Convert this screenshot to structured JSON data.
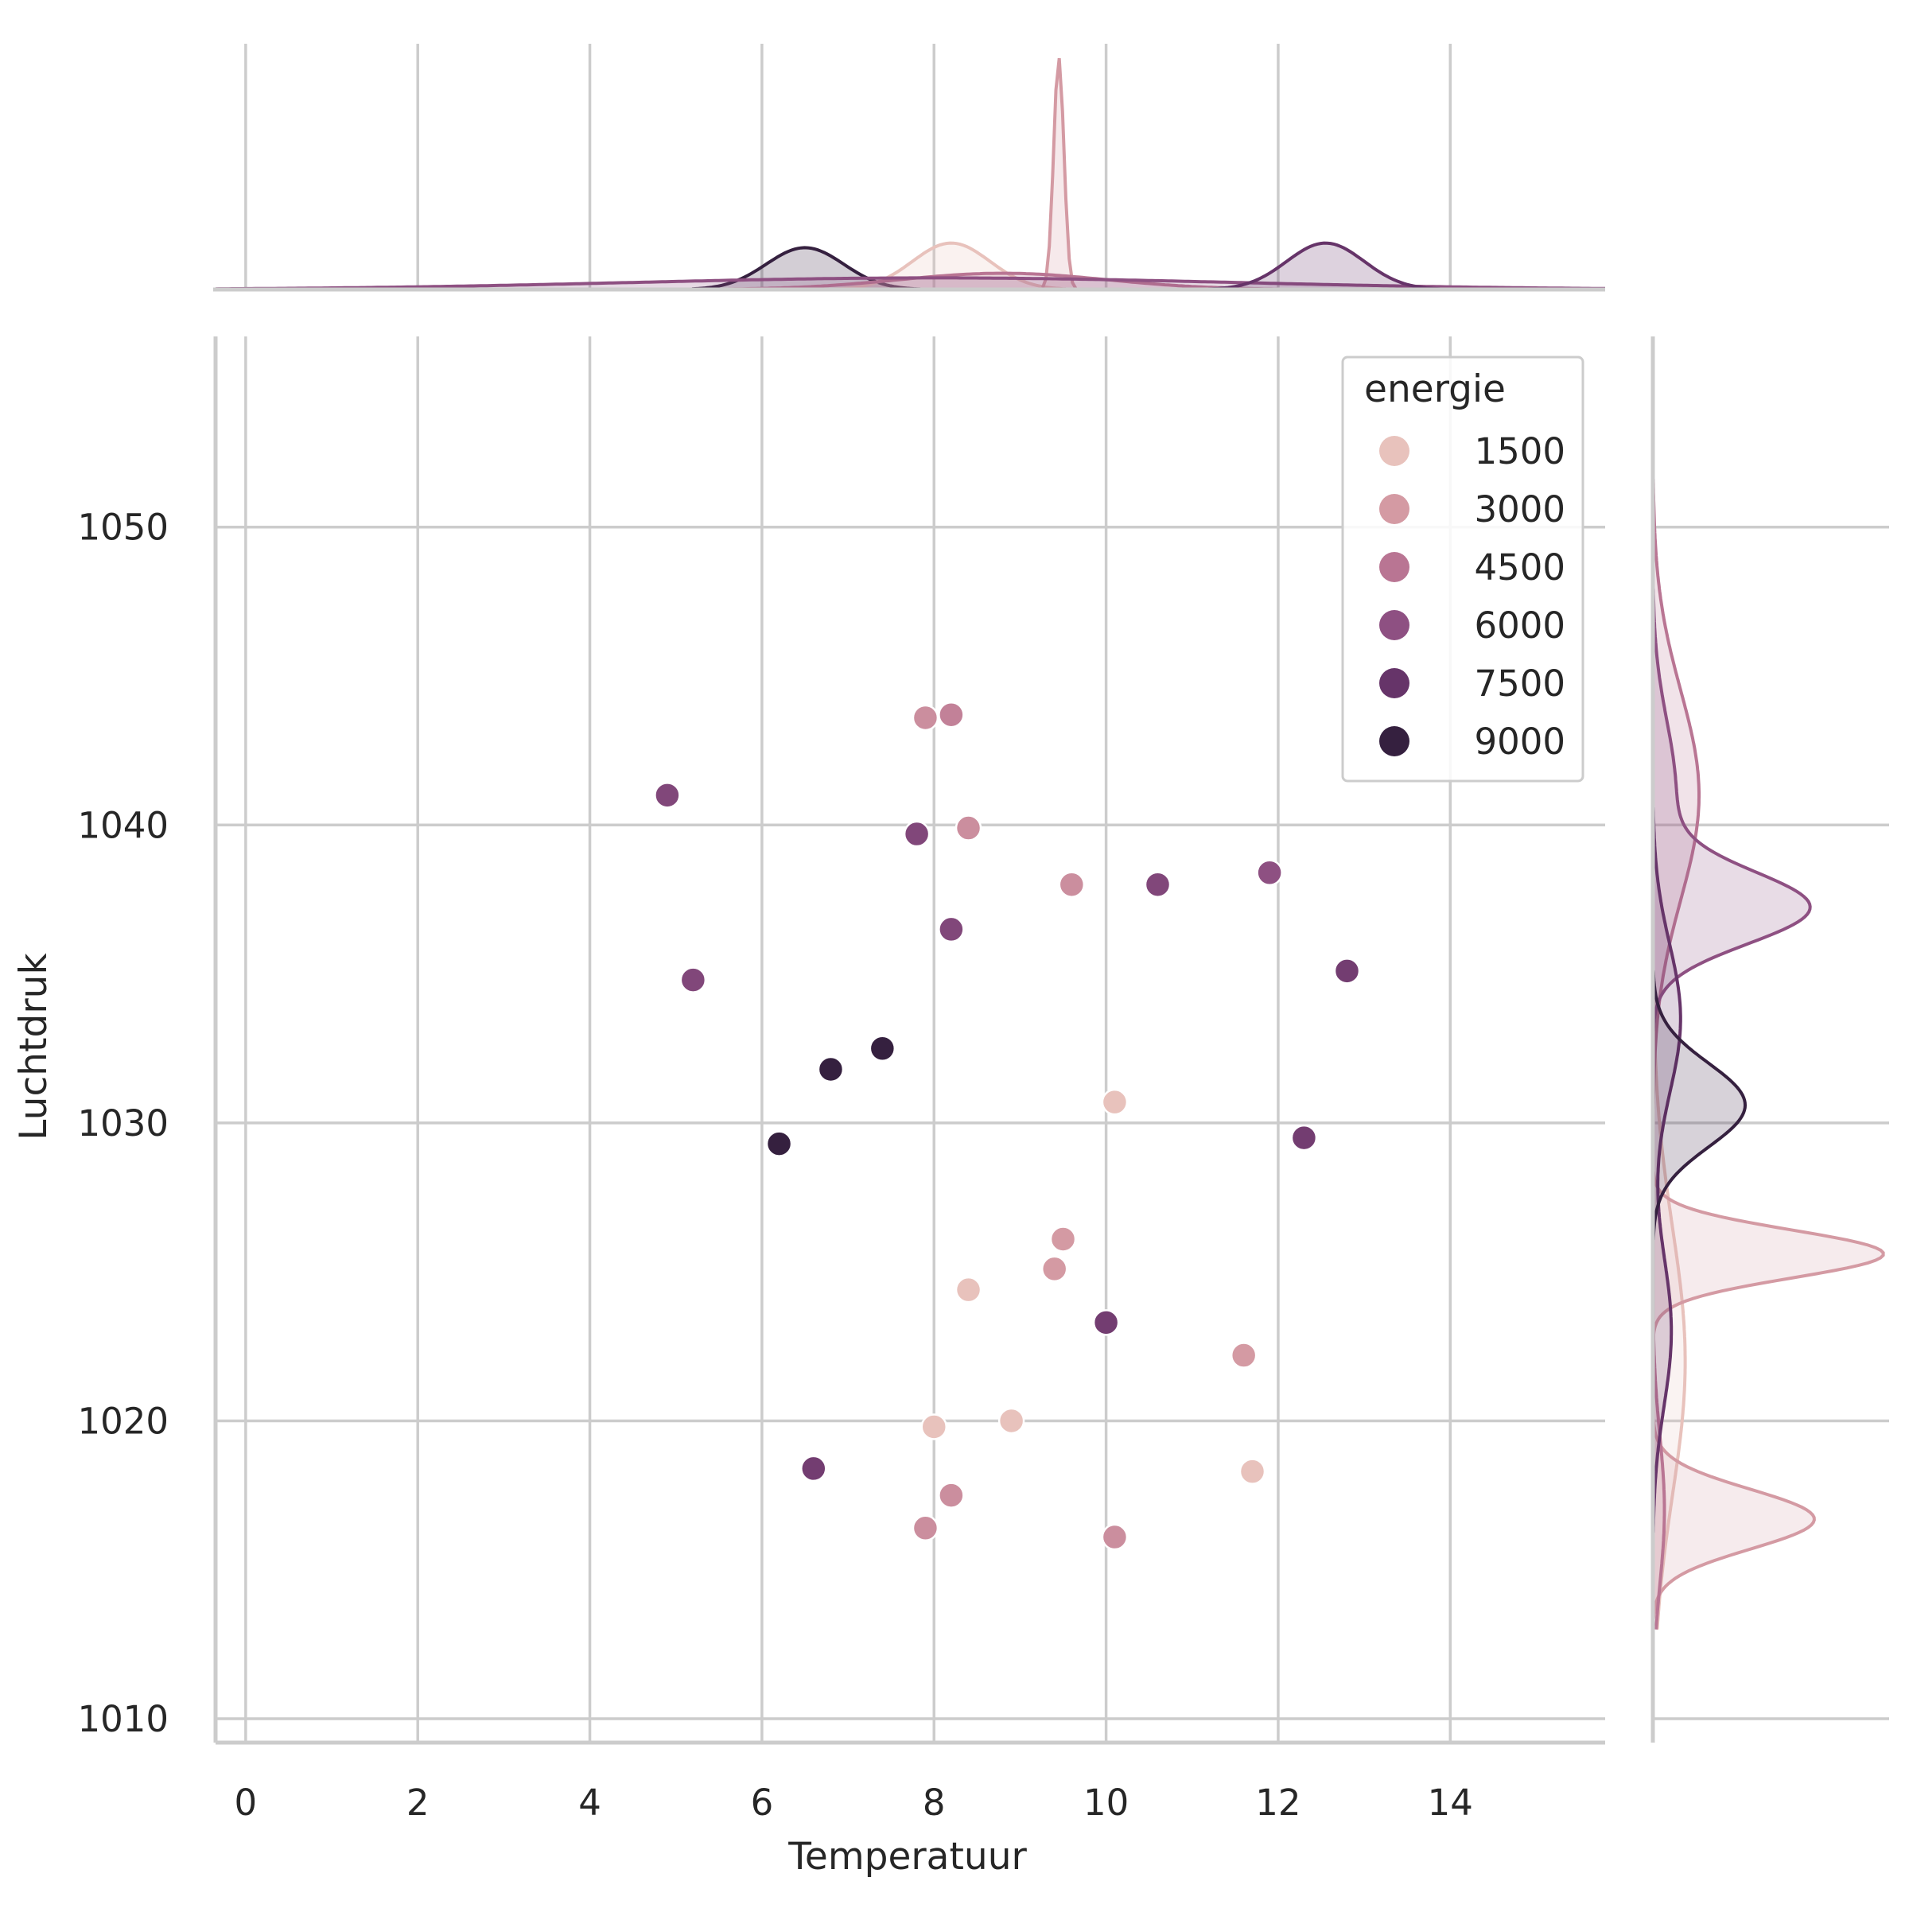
{
  "chart_data": {
    "type": "scatter",
    "title": "",
    "xlabel": "Temperatuur",
    "ylabel": "Luchtdruk",
    "xlim": [
      -0.35,
      15.8
    ],
    "ylim": [
      1009.2,
      1056.4
    ],
    "xticks": [
      0,
      2,
      4,
      6,
      8,
      10,
      12,
      14
    ],
    "yticks": [
      1010,
      1020,
      1030,
      1040,
      1050
    ],
    "xtick_labels": [
      "0",
      "2",
      "4",
      "6",
      "8",
      "10",
      "12",
      "14"
    ],
    "ytick_labels": [
      "1010",
      "1020",
      "1030",
      "1040",
      "1050"
    ],
    "grid": true,
    "hue_variable": "energie",
    "legend": {
      "title": "energie",
      "placement": "top-right",
      "entries": [
        {
          "label": "1500",
          "value": 1500,
          "color": "#e8c2bc"
        },
        {
          "label": "3000",
          "value": 3000,
          "color": "#d49aa3"
        },
        {
          "label": "4500",
          "value": 4500,
          "color": "#b97593"
        },
        {
          "label": "6000",
          "value": 6000,
          "color": "#8e5082"
        },
        {
          "label": "7500",
          "value": 7500,
          "color": "#663469"
        },
        {
          "label": "9000",
          "value": 9000,
          "color": "#35203f"
        }
      ]
    },
    "points": [
      {
        "x": 7.9,
        "y": 1043.6,
        "energie": 3500
      },
      {
        "x": 8.2,
        "y": 1043.7,
        "energie": 4000
      },
      {
        "x": 4.9,
        "y": 1041.0,
        "energie": 6500
      },
      {
        "x": 7.8,
        "y": 1039.7,
        "energie": 6500
      },
      {
        "x": 8.4,
        "y": 1039.9,
        "energie": 3500
      },
      {
        "x": 9.6,
        "y": 1038.0,
        "energie": 3500
      },
      {
        "x": 10.6,
        "y": 1038.0,
        "energie": 6500
      },
      {
        "x": 11.9,
        "y": 1038.4,
        "energie": 6000
      },
      {
        "x": 8.2,
        "y": 1036.5,
        "energie": 6500
      },
      {
        "x": 5.2,
        "y": 1034.8,
        "energie": 6500
      },
      {
        "x": 12.8,
        "y": 1035.1,
        "energie": 7000
      },
      {
        "x": 7.4,
        "y": 1032.5,
        "energie": 9000
      },
      {
        "x": 6.8,
        "y": 1031.8,
        "energie": 9000
      },
      {
        "x": 10.1,
        "y": 1030.7,
        "energie": 1500
      },
      {
        "x": 6.2,
        "y": 1029.3,
        "energie": 9000
      },
      {
        "x": 12.3,
        "y": 1029.5,
        "energie": 7000
      },
      {
        "x": 9.5,
        "y": 1026.1,
        "energie": 3000
      },
      {
        "x": 9.4,
        "y": 1025.1,
        "energie": 3000
      },
      {
        "x": 8.4,
        "y": 1024.4,
        "energie": 1500
      },
      {
        "x": 10.0,
        "y": 1023.3,
        "energie": 7000
      },
      {
        "x": 11.6,
        "y": 1022.2,
        "energie": 3000
      },
      {
        "x": 8.0,
        "y": 1019.8,
        "energie": 1500
      },
      {
        "x": 8.9,
        "y": 1020.0,
        "energie": 1500
      },
      {
        "x": 6.6,
        "y": 1018.4,
        "energie": 7000
      },
      {
        "x": 11.7,
        "y": 1018.3,
        "energie": 1500
      },
      {
        "x": 8.2,
        "y": 1017.5,
        "energie": 3500
      },
      {
        "x": 7.9,
        "y": 1016.4,
        "energie": 3500
      },
      {
        "x": 10.1,
        "y": 1016.1,
        "energie": 3500
      }
    ],
    "marginal_x_kde": [
      {
        "name": "9000",
        "color": "#35203f",
        "modes": [
          {
            "center": 6.5,
            "width": 0.45,
            "height": 0.18
          }
        ]
      },
      {
        "name": "1500",
        "color": "#e8c2bc",
        "modes": [
          {
            "center": 8.2,
            "width": 0.45,
            "height": 0.2
          }
        ]
      },
      {
        "name": "3000",
        "color": "#d49aa3",
        "modes": [
          {
            "center": 9.45,
            "width": 0.06,
            "height": 1.0
          }
        ]
      },
      {
        "name": "4500",
        "color": "#b97593",
        "modes": [
          {
            "center": 8.8,
            "width": 1.2,
            "height": 0.07
          }
        ]
      },
      {
        "name": "6000",
        "color": "#8e5082",
        "modes": [
          {
            "center": 8.0,
            "width": 3.5,
            "height": 0.05
          }
        ]
      },
      {
        "name": "7500",
        "color": "#663469",
        "modes": [
          {
            "center": 12.55,
            "width": 0.45,
            "height": 0.2
          }
        ]
      }
    ],
    "marginal_y_kde": [
      {
        "name": "1500",
        "color": "#e8c2bc",
        "modes": [
          {
            "center": 1022.0,
            "width": 4.5,
            "height": 0.14
          }
        ]
      },
      {
        "name": "3000",
        "color": "#d49aa3",
        "modes": [
          {
            "center": 1025.6,
            "width": 0.8,
            "height": 1.0
          },
          {
            "center": 1016.7,
            "width": 1.0,
            "height": 0.7
          }
        ]
      },
      {
        "name": "4500",
        "color": "#b97593",
        "modes": [
          {
            "center": 1041.0,
            "width": 3.5,
            "height": 0.2
          },
          {
            "center": 1017.0,
            "width": 2.5,
            "height": 0.05
          }
        ]
      },
      {
        "name": "6000",
        "color": "#8e5082",
        "modes": [
          {
            "center": 1037.2,
            "width": 1.2,
            "height": 0.65
          },
          {
            "center": 1041.0,
            "width": 2.5,
            "height": 0.1
          }
        ]
      },
      {
        "name": "7500",
        "color": "#663469",
        "modes": [
          {
            "center": 1033.5,
            "width": 2.5,
            "height": 0.12
          },
          {
            "center": 1023.0,
            "width": 2.5,
            "height": 0.08
          }
        ]
      },
      {
        "name": "9000",
        "color": "#35203f",
        "modes": [
          {
            "center": 1030.6,
            "width": 1.4,
            "height": 0.4
          }
        ]
      }
    ]
  }
}
